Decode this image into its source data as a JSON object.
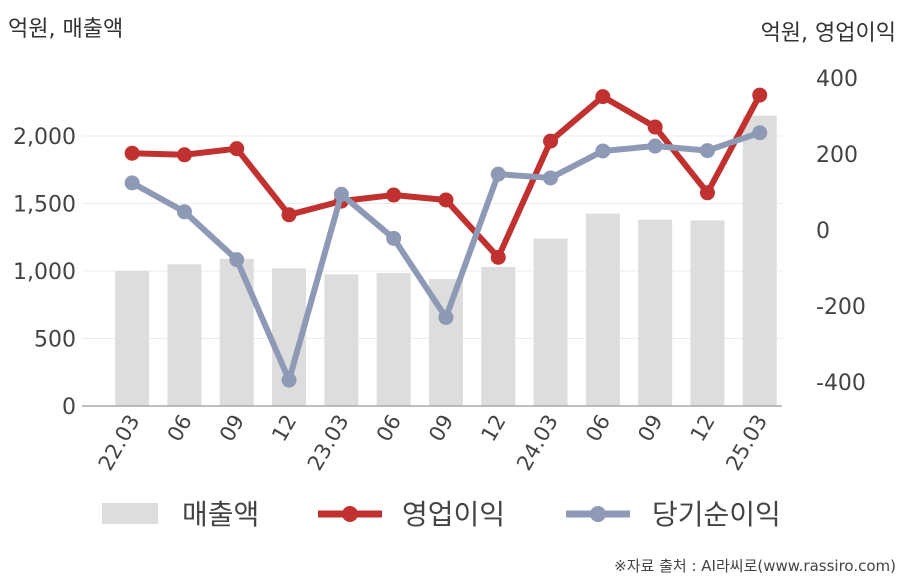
{
  "left_unit_label": "억원, 매출액",
  "right_unit_label": "억원, 영업이익",
  "source": "※자료 출처 : AI라씨로(www.rassiro.com)",
  "colors": {
    "revenue": "#dddddd",
    "operating_profit": "#c0312f",
    "net_income": "#8e9ab5",
    "axis": "#aaaaaa",
    "grid": "#ececec"
  },
  "chart_data": {
    "type": "bar+line",
    "categories": [
      "22.03",
      "06",
      "09",
      "12",
      "23.03",
      "06",
      "09",
      "12",
      "24.03",
      "06",
      "09",
      "12",
      "25.03"
    ],
    "left_axis": {
      "range": [
        0,
        2500
      ],
      "ticks": [
        0,
        500,
        1000,
        1500,
        2000
      ],
      "tick_labels": [
        "0",
        "500",
        "1,000",
        "1,500",
        "2,000"
      ]
    },
    "right_axis": {
      "range": [
        -450,
        400
      ],
      "ticks": [
        -400,
        -200,
        0,
        200,
        400
      ],
      "tick_labels": [
        "-400",
        "-200",
        "0",
        "200",
        "400"
      ]
    },
    "series": [
      {
        "name": "매출액",
        "type": "bar",
        "axis": "left",
        "values": [
          1000,
          1050,
          1090,
          1020,
          975,
          985,
          940,
          1030,
          1240,
          1425,
          1380,
          1375,
          2150
        ]
      },
      {
        "name": "영업이익",
        "type": "line",
        "axis": "right",
        "values": [
          202,
          198,
          214,
          40,
          76,
          92,
          79,
          -72,
          234,
          351,
          271,
          98,
          355
        ]
      },
      {
        "name": "당기순이익",
        "type": "line",
        "axis": "right",
        "values": [
          124,
          48,
          -78,
          -395,
          94,
          -22,
          -230,
          147,
          137,
          208,
          221,
          209,
          256
        ]
      }
    ],
    "grid": true,
    "legend_position": "bottom"
  }
}
